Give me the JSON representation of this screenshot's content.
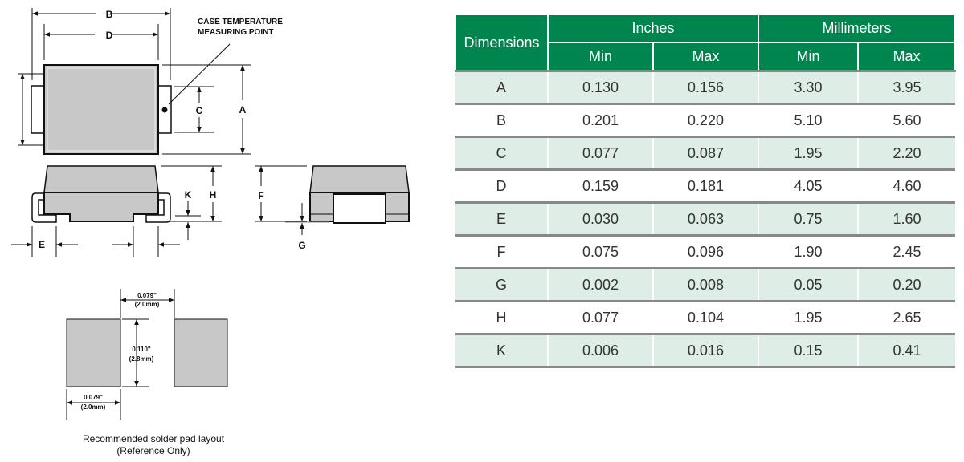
{
  "drawing": {
    "labels": {
      "A": "A",
      "B": "B",
      "C": "C",
      "D": "D",
      "E": "E",
      "F": "F",
      "G": "G",
      "H": "H",
      "K": "K"
    },
    "callout_line1": "CASE TEMPERATURE",
    "callout_line2": "MEASURING POINT",
    "pad": {
      "gap_in": "0.079\"",
      "gap_mm": "(2.0mm)",
      "height_in": "0.110\"",
      "height_mm": "(2.8mm)",
      "width_in": "0.079\"",
      "width_mm": "(2.0mm)",
      "caption1": "Recommended solder pad layout",
      "caption2": "(Reference Only)"
    }
  },
  "table": {
    "header": {
      "dimensions": "Dimensions",
      "inches": "Inches",
      "millimeters": "Millimeters",
      "min": "Min",
      "max": "Max"
    },
    "rows": [
      [
        "A",
        "0.130",
        "0.156",
        "3.30",
        "3.95"
      ],
      [
        "B",
        "0.201",
        "0.220",
        "5.10",
        "5.60"
      ],
      [
        "C",
        "0.077",
        "0.087",
        "1.95",
        "2.20"
      ],
      [
        "D",
        "0.159",
        "0.181",
        "4.05",
        "4.60"
      ],
      [
        "E",
        "0.030",
        "0.063",
        "0.75",
        "1.60"
      ],
      [
        "F",
        "0.075",
        "0.096",
        "1.90",
        "2.45"
      ],
      [
        "G",
        "0.002",
        "0.008",
        "0.05",
        "0.20"
      ],
      [
        "H",
        "0.077",
        "0.104",
        "1.95",
        "2.65"
      ],
      [
        "K",
        "0.006",
        "0.016",
        "0.15",
        "0.41"
      ]
    ]
  },
  "colors": {
    "header_green": "#00854f",
    "row_tint": "#deede6",
    "part_gray": "#c8c8c8"
  }
}
